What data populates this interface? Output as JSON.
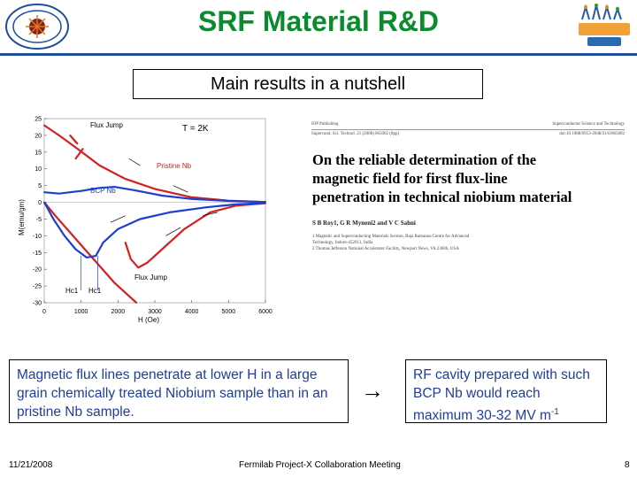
{
  "slide": {
    "title": "SRF Material R&D",
    "subtitle": "Main results in a nutshell",
    "left_text": "Magnetic flux lines penetrate at lower H in a large grain chemically treated Niobium sample than in an pristine Nb sample.",
    "arrow": "→",
    "right_text_main": "RF cavity prepared with such BCP Nb would reach maximum 30-32 MV m",
    "right_text_sup": "-1",
    "footer_date": "11/21/2008",
    "footer_center": "Fermilab Project-X Collaboration Meeting",
    "footer_page": "8"
  },
  "paper": {
    "header_left": "IOP Publishing",
    "header_right": "Superconductor Science and Technology",
    "journal_line": "Supercond. Sci. Technol. 21 (2008) 065002 (8pp)",
    "doi_line": "doi:10.1088/0953-2048/21/6/065002",
    "title_lines": [
      "On the reliable determination of the",
      "magnetic field for first flux-line",
      "penetration in technical niobium material"
    ],
    "authors": "S B Roy1, G R Myneni2 and V C Sahni",
    "affil_1": "1 Magnetic and Superconducting Materials Section, Raja Ramanna Centre for Advanced",
    "affil_1b": "Technology, Indore-452013, India",
    "affil_2": "2 Thomas Jefferson National Accelerator Facility, Newport News, VA 23606, USA"
  },
  "chart_data": {
    "type": "line",
    "title": "T = 2K",
    "xlabel": "H (Oe)",
    "ylabel": "M(emu/gm)",
    "xlim": [
      0,
      6000
    ],
    "ylim": [
      -30,
      25
    ],
    "x_ticks": [
      0,
      1000,
      2000,
      3000,
      4000,
      5000,
      6000
    ],
    "y_ticks": [
      -30,
      -25,
      -20,
      -15,
      -10,
      -5,
      0,
      5,
      10,
      15,
      20,
      25
    ],
    "x_tick_labels": [
      "0",
      "1000",
      "2000",
      "3000",
      "4000",
      "5000",
      "6000"
    ],
    "y_tick_labels": [
      "-30",
      "-25",
      "-20",
      "-15",
      "-10",
      "-5",
      "0",
      "5",
      "10",
      "15",
      "20",
      "25"
    ],
    "series": [
      {
        "name": "Pristine Nb",
        "color": "#d42020",
        "branches": [
          [
            [
              0,
              0
            ],
            [
              300,
              -4
            ],
            [
              700,
              -9
            ],
            [
              1100,
              -14
            ],
            [
              1500,
              -19
            ],
            [
              1900,
              -24
            ],
            [
              2300,
              -28
            ],
            [
              2500,
              -30
            ]
          ],
          [
            [
              2200,
              -12
            ],
            [
              2350,
              -17
            ],
            [
              2550,
              -19.5
            ],
            [
              2800,
              -18
            ],
            [
              3200,
              -14
            ],
            [
              3800,
              -8
            ],
            [
              4500,
              -3
            ],
            [
              5200,
              -1
            ],
            [
              6000,
              -0.3
            ]
          ],
          [
            [
              0,
              23
            ],
            [
              400,
              20
            ],
            [
              900,
              16
            ],
            [
              1500,
              11
            ],
            [
              2200,
              7
            ],
            [
              3000,
              4
            ],
            [
              4000,
              1.5
            ],
            [
              5000,
              0.5
            ],
            [
              6000,
              0.1
            ]
          ],
          [
            [
              850,
              13
            ],
            [
              1050,
              16
            ]
          ],
          [
            [
              700,
              20
            ],
            [
              900,
              17.5
            ]
          ]
        ]
      },
      {
        "name": "BCP Nb",
        "color": "#1d3fcf",
        "branches": [
          [
            [
              0,
              0
            ],
            [
              250,
              -5
            ],
            [
              550,
              -10
            ],
            [
              850,
              -14
            ],
            [
              1150,
              -16.5
            ],
            [
              1400,
              -16
            ],
            [
              1600,
              -12
            ],
            [
              2000,
              -8
            ],
            [
              2600,
              -5
            ],
            [
              3400,
              -3
            ],
            [
              4400,
              -1.5
            ],
            [
              5200,
              -0.6
            ],
            [
              6000,
              -0.2
            ]
          ],
          [
            [
              0,
              3
            ],
            [
              400,
              2.6
            ],
            [
              1000,
              3.4
            ],
            [
              1500,
              4.3
            ],
            [
              1900,
              4.6
            ],
            [
              2500,
              3.5
            ],
            [
              3200,
              2
            ],
            [
              4000,
              1
            ],
            [
              5000,
              0.4
            ],
            [
              6000,
              0.1
            ]
          ]
        ]
      }
    ],
    "annotations": [
      "Flux Jump",
      "Pristine Nb",
      "BCP Nb",
      "Flux Jump",
      "Hc1",
      "Hc1"
    ],
    "hc1_markers": [
      1000,
      1450
    ]
  }
}
